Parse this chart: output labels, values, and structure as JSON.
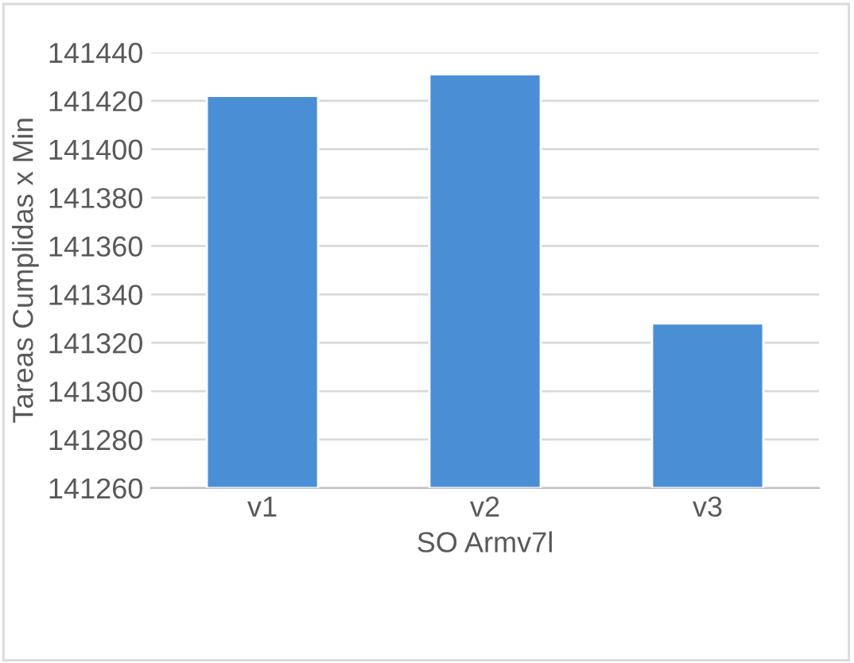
{
  "chart_data": {
    "type": "bar",
    "xlabel": "SO Armv7l",
    "ylabel": "Tareas Cumplidas x Min",
    "categories": [
      "v1",
      "v2",
      "v3"
    ],
    "series": [
      {
        "color": "#4a8fd6",
        "values": [
          141422,
          141431,
          141328
        ]
      }
    ],
    "ylim": [
      141260,
      141440
    ],
    "yticks": [
      141260,
      141280,
      141300,
      141320,
      141340,
      141360,
      141380,
      141400,
      141420,
      141440
    ],
    "grid": "y"
  }
}
